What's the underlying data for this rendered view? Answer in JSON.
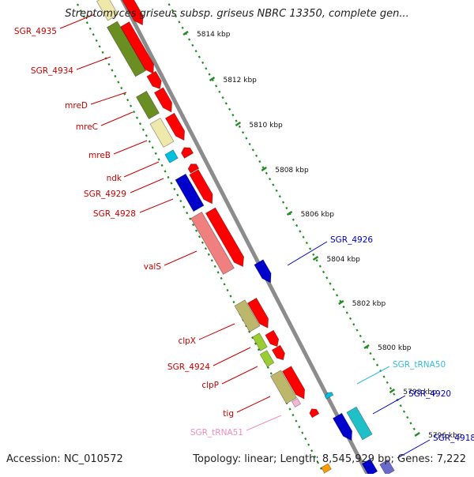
{
  "title": "Streptomyces griseus subsp. griseus NBRC 13350, complete gen...",
  "footer": {
    "accession": "Accession: NC_010572",
    "summary": "Topology: linear; Length: 8,545,929 bp; Genes: 7,222"
  },
  "ruler_ticks": [
    {
      "label": "5814 kbp"
    },
    {
      "label": "5812 kbp"
    },
    {
      "label": "5810 kbp"
    },
    {
      "label": "5808 kbp"
    },
    {
      "label": "5806 kbp"
    },
    {
      "label": "5804 kbp"
    },
    {
      "label": "5802 kbp"
    },
    {
      "label": "5800 kbp"
    },
    {
      "label": "5798 kbp"
    },
    {
      "label": "5796 kbp"
    }
  ],
  "gene_labels": [
    {
      "name": "SGR_4935",
      "color": "#cc0000"
    },
    {
      "name": "SGR_4934",
      "color": "#cc0000"
    },
    {
      "name": "mreD",
      "color": "#cc0000"
    },
    {
      "name": "mreC",
      "color": "#cc0000"
    },
    {
      "name": "mreB",
      "color": "#cc0000"
    },
    {
      "name": "ndk",
      "color": "#cc0000"
    },
    {
      "name": "SGR_4929",
      "color": "#cc0000"
    },
    {
      "name": "SGR_4928",
      "color": "#cc0000"
    },
    {
      "name": "valS",
      "color": "#cc0000"
    },
    {
      "name": "clpX",
      "color": "#cc0000"
    },
    {
      "name": "SGR_4924",
      "color": "#cc0000"
    },
    {
      "name": "clpP",
      "color": "#cc0000"
    },
    {
      "name": "tig",
      "color": "#cc0000"
    },
    {
      "name": "SGR_tRNA51",
      "color": "#f08cc0"
    },
    {
      "name": "SGR_4926",
      "color": "#0000cc"
    },
    {
      "name": "SGR_tRNA50",
      "color": "#33bbdd"
    },
    {
      "name": "SGR_4920",
      "color": "#0000cc"
    },
    {
      "name": "SGR_4918",
      "color": "#0000cc"
    }
  ],
  "colors": {
    "forward_cds": "#ff0000",
    "olive_cds": "#6b8e23",
    "khaki_cds": "#bdb76b",
    "pale_cds": "#eee8aa",
    "salmon_cds": "#f08080",
    "blue_cds": "#0000cc",
    "cyan_cds": "#00c0e0",
    "ruler_green": "#228b22",
    "backbone": "#8c8c8c"
  }
}
